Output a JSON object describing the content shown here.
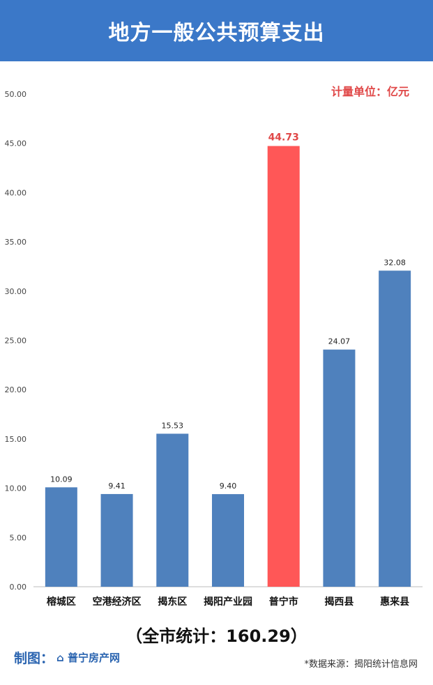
{
  "header": {
    "title": "地方一般公共预算支出"
  },
  "unit_label": "计量单位：亿元",
  "total_label": "（全市统计：160.29）",
  "maker_label": "制图：",
  "maker_logo": "普宁房产网",
  "source_label": "*数据来源：揭阳统计信息网",
  "watermark": "普宁房产网",
  "chart_data": {
    "type": "bar",
    "categories": [
      "榕城区",
      "空港经济区",
      "揭东区",
      "揭阳产业园",
      "普宁市",
      "揭西县",
      "惠来县"
    ],
    "values": [
      10.09,
      9.41,
      15.53,
      9.4,
      44.73,
      24.07,
      32.08
    ],
    "value_labels": [
      "10.09",
      "9.41",
      "15.53",
      "9.40",
      "44.73",
      "24.07",
      "32.08"
    ],
    "ylim": [
      0,
      50
    ],
    "yticks": [
      "0.00",
      "5.00",
      "10.00",
      "15.00",
      "20.00",
      "25.00",
      "30.00",
      "35.00",
      "40.00",
      "45.00",
      "50.00"
    ],
    "grid": false,
    "colors": {
      "default": "#4f81bd",
      "highlight": "#ff5757",
      "highlight_label": "#e04848"
    },
    "highlight_index": 4
  }
}
